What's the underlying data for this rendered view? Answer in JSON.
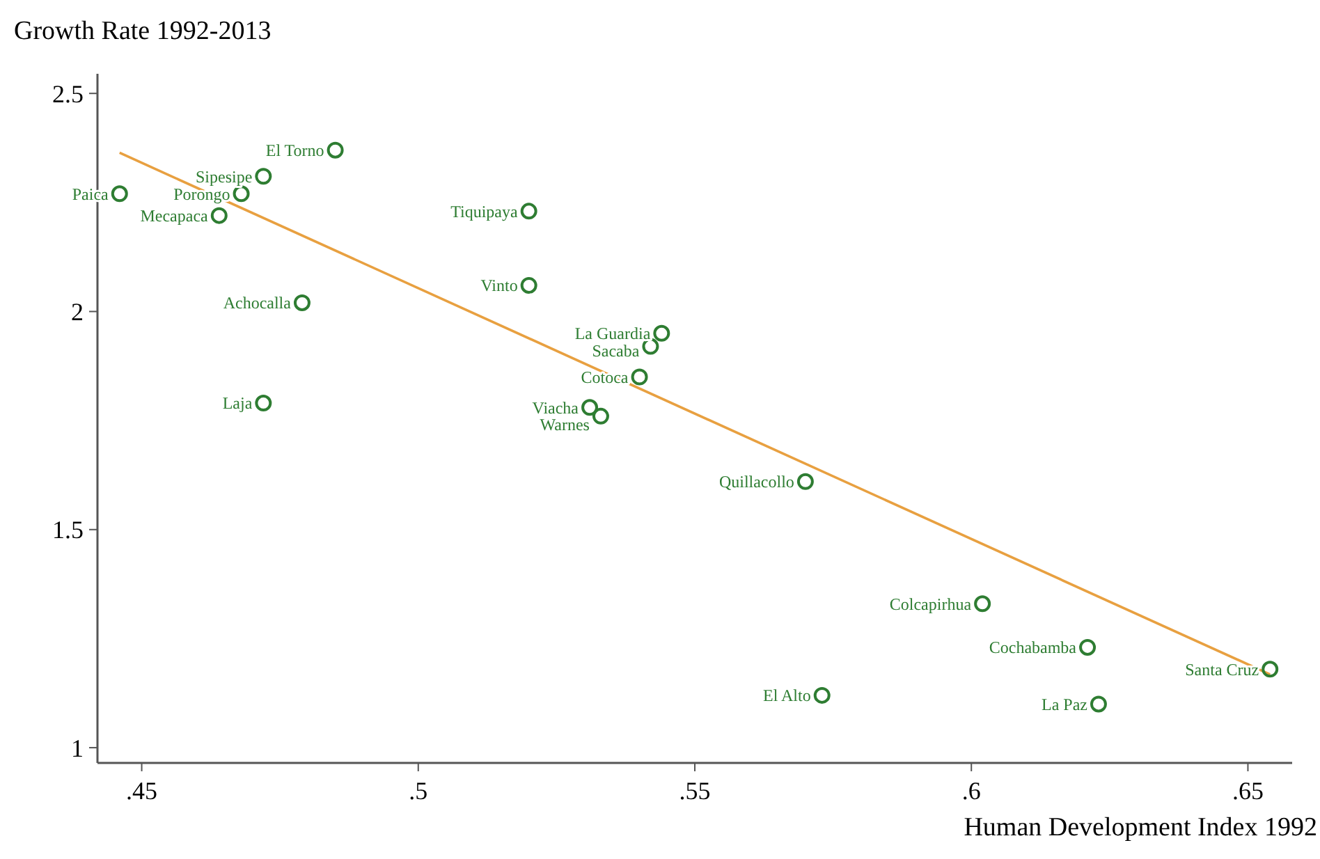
{
  "chart_data": {
    "type": "scatter",
    "ylabel": "Growth Rate 1992-2013",
    "xlabel": "Human Development Index 1992",
    "xlim": [
      0.442,
      0.658
    ],
    "ylim": [
      0.965,
      2.545
    ],
    "xticks": [
      {
        "value": 0.45,
        "label": ".45"
      },
      {
        "value": 0.5,
        "label": ".5"
      },
      {
        "value": 0.55,
        "label": ".55"
      },
      {
        "value": 0.6,
        "label": ".6"
      },
      {
        "value": 0.65,
        "label": ".65"
      }
    ],
    "yticks": [
      1,
      1.5,
      2,
      2.5
    ],
    "grid": false,
    "series": [
      {
        "color": "#2e7d32",
        "marker": "circle",
        "x": [
          0.446,
          0.485,
          0.472,
          0.468,
          0.464,
          0.479,
          0.472,
          0.52,
          0.52,
          0.544,
          0.542,
          0.54,
          0.531,
          0.533,
          0.57,
          0.602,
          0.621,
          0.654,
          0.573,
          0.623
        ],
        "values": [
          2.27,
          2.37,
          2.31,
          2.27,
          2.22,
          2.02,
          1.79,
          2.23,
          2.06,
          1.95,
          1.92,
          1.85,
          1.78,
          1.76,
          1.61,
          1.33,
          1.23,
          1.18,
          1.12,
          1.1
        ],
        "value_labels": [
          "Paica",
          "El Torno",
          "Sipesipe",
          "Porongo",
          "Mecapaca",
          "Achocalla",
          "Laja",
          "Tiquipaya",
          "Vinto",
          "La Guardia",
          "Sacaba",
          "Cotoca",
          "Viacha",
          "Warnes",
          "Quillacollo",
          "Colcapirhua",
          "Cochabamba",
          "Santa Cruz",
          "El Alto",
          "La Paz"
        ]
      },
      {
        "type": "line",
        "color": "#e8a040",
        "marker": "none",
        "x": [
          0.446,
          0.654
        ],
        "values": [
          2.364,
          1.168
        ]
      }
    ]
  }
}
